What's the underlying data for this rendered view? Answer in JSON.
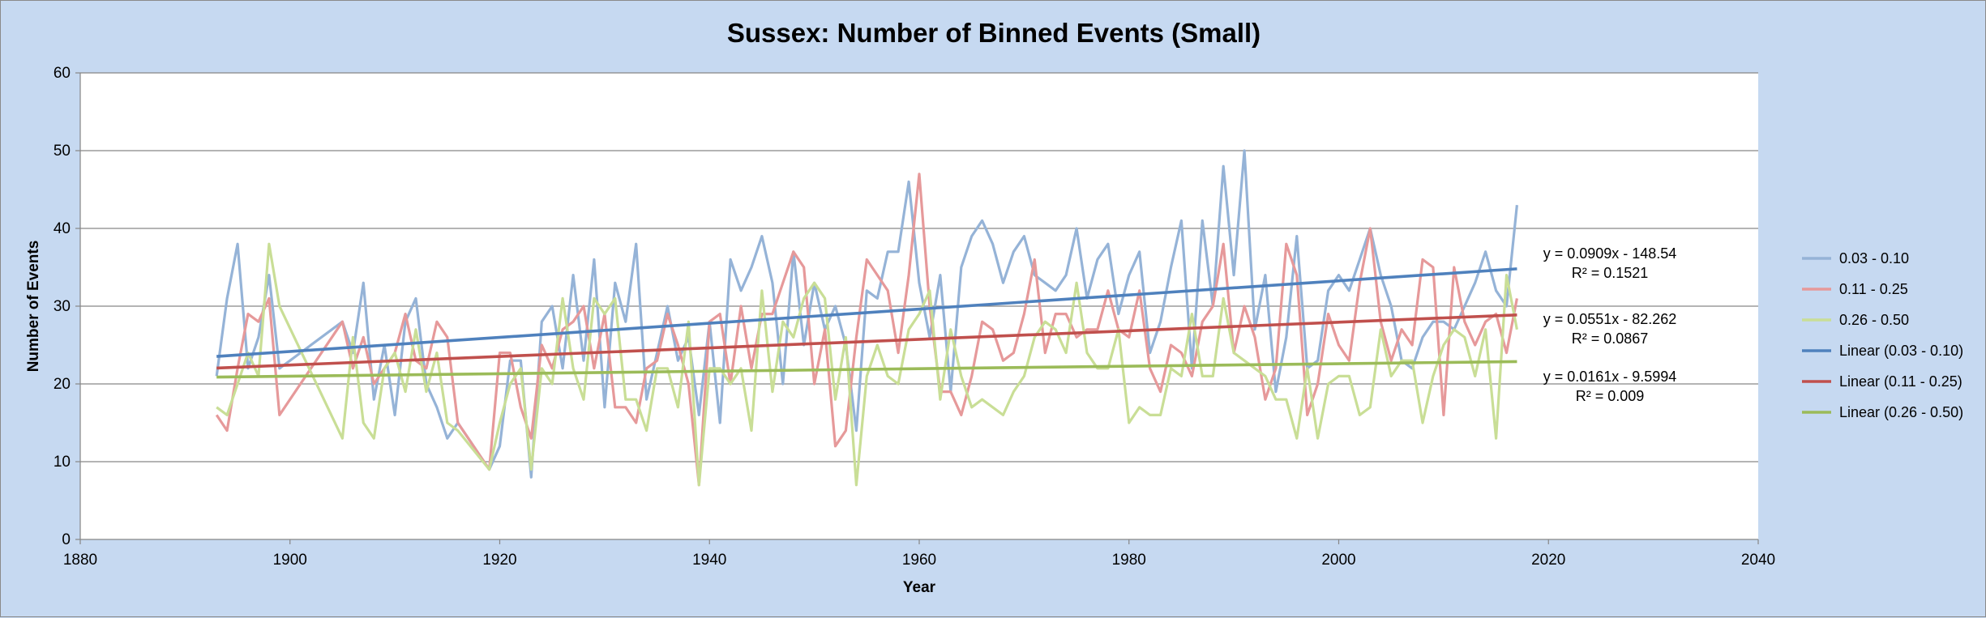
{
  "chart_data": {
    "type": "line",
    "title": "Sussex: Number of Binned Events (Small)",
    "xlabel": "Year",
    "ylabel": "Number of Events",
    "xlim": [
      1880,
      2040
    ],
    "ylim": [
      0,
      60
    ],
    "x_ticks": [
      "1880",
      "1900",
      "1920",
      "1940",
      "1960",
      "1980",
      "2000",
      "2020",
      "2040"
    ],
    "y_ticks": [
      "0",
      "10",
      "20",
      "30",
      "40",
      "50",
      "60"
    ],
    "grid": "horizontal",
    "legend_position": "right",
    "x": [
      1893,
      1894,
      1895,
      1896,
      1897,
      1898,
      1899,
      1905,
      1906,
      1907,
      1908,
      1909,
      1910,
      1911,
      1912,
      1913,
      1914,
      1915,
      1916,
      1919,
      1920,
      1921,
      1922,
      1923,
      1924,
      1925,
      1926,
      1927,
      1928,
      1929,
      1930,
      1931,
      1932,
      1933,
      1934,
      1935,
      1936,
      1937,
      1938,
      1939,
      1940,
      1941,
      1942,
      1943,
      1944,
      1945,
      1946,
      1947,
      1948,
      1949,
      1950,
      1951,
      1952,
      1953,
      1954,
      1955,
      1956,
      1957,
      1958,
      1959,
      1960,
      1961,
      1962,
      1963,
      1964,
      1965,
      1966,
      1967,
      1968,
      1969,
      1970,
      1971,
      1972,
      1973,
      1974,
      1975,
      1976,
      1977,
      1978,
      1979,
      1980,
      1981,
      1982,
      1983,
      1984,
      1985,
      1986,
      1987,
      1988,
      1989,
      1990,
      1991,
      1992,
      1993,
      1994,
      1995,
      1996,
      1997,
      1998,
      1999,
      2000,
      2001,
      2002,
      2003,
      2004,
      2005,
      2006,
      2007,
      2008,
      2009,
      2010,
      2011,
      2012,
      2013,
      2014,
      2015,
      2016,
      2017
    ],
    "series": [
      {
        "name": "0.03 - 0.10",
        "color": "#95b3d7",
        "values": [
          21,
          31,
          38,
          22,
          26,
          34,
          22,
          28,
          24,
          33,
          18,
          25,
          16,
          28,
          31,
          20,
          17,
          13,
          15,
          9,
          12,
          23,
          23,
          8,
          28,
          30,
          22,
          34,
          23,
          36,
          17,
          33,
          28,
          38,
          18,
          24,
          30,
          23,
          26,
          16,
          28,
          15,
          36,
          32,
          35,
          39,
          33,
          20,
          37,
          25,
          33,
          27,
          30,
          25,
          14,
          32,
          31,
          37,
          37,
          46,
          33,
          26,
          34,
          19,
          35,
          39,
          41,
          38,
          33,
          37,
          39,
          34,
          33,
          32,
          34,
          40,
          31,
          36,
          38,
          29,
          34,
          37,
          24,
          28,
          35,
          41,
          22,
          41,
          30,
          48,
          34,
          50,
          27,
          34,
          19,
          26,
          39,
          22,
          23,
          32,
          34,
          32,
          36,
          40,
          34,
          30,
          23,
          22,
          26,
          28,
          28,
          27,
          30,
          33,
          37,
          32,
          30,
          43
        ]
      },
      {
        "name": "0.11 - 0.25",
        "color": "#e6999a",
        "values": [
          16,
          14,
          22,
          29,
          28,
          31,
          16,
          28,
          22,
          26,
          20,
          22,
          24,
          29,
          23,
          22,
          28,
          26,
          15,
          9,
          24,
          24,
          17,
          13,
          25,
          22,
          27,
          28,
          30,
          22,
          29,
          17,
          17,
          15,
          22,
          23,
          29,
          25,
          20,
          7,
          28,
          29,
          20,
          30,
          22,
          29,
          29,
          33,
          37,
          35,
          20,
          27,
          12,
          14,
          26,
          36,
          34,
          32,
          24,
          34,
          47,
          30,
          19,
          19,
          16,
          21,
          28,
          27,
          23,
          24,
          29,
          36,
          24,
          29,
          29,
          26,
          27,
          27,
          32,
          27,
          26,
          32,
          22,
          19,
          25,
          24,
          21,
          28,
          30,
          38,
          24,
          30,
          26,
          18,
          22,
          38,
          34,
          16,
          20,
          29,
          25,
          23,
          33,
          40,
          28,
          23,
          27,
          25,
          36,
          35,
          16,
          35,
          28,
          25,
          28,
          29,
          24,
          31
        ]
      },
      {
        "name": "0.26 - 0.50",
        "color": "#c9de96",
        "values": [
          17,
          16,
          20,
          24,
          21,
          38,
          30,
          13,
          26,
          15,
          13,
          22,
          24,
          19,
          27,
          19,
          24,
          15,
          14,
          9,
          15,
          20,
          22,
          9,
          22,
          20,
          31,
          22,
          18,
          31,
          29,
          31,
          18,
          18,
          14,
          22,
          22,
          17,
          28,
          7,
          22,
          22,
          20,
          22,
          14,
          32,
          19,
          28,
          26,
          31,
          33,
          31,
          18,
          26,
          7,
          21,
          25,
          21,
          20,
          27,
          29,
          32,
          18,
          27,
          21,
          17,
          18,
          17,
          16,
          19,
          21,
          26,
          28,
          27,
          24,
          33,
          24,
          22,
          22,
          27,
          15,
          17,
          16,
          16,
          22,
          21,
          29,
          21,
          21,
          31,
          24,
          23,
          22,
          21,
          18,
          18,
          13,
          22,
          13,
          20,
          21,
          21,
          16,
          17,
          27,
          21,
          23,
          23,
          15,
          21,
          25,
          27,
          26,
          21,
          27,
          13,
          34,
          27
        ]
      }
    ],
    "trendlines": [
      {
        "name": "Linear (0.03 - 0.10)",
        "color": "#4f81bd",
        "slope": 0.0909,
        "intercept": -148.54,
        "x_range": [
          1893,
          2017
        ],
        "equation": "y = 0.0909x - 148.54",
        "r2": "R² = 0.1521"
      },
      {
        "name": "Linear (0.11 - 0.25)",
        "color": "#c0504d",
        "slope": 0.0551,
        "intercept": -82.262,
        "x_range": [
          1893,
          2017
        ],
        "equation": "y = 0.0551x - 82.262",
        "r2": "R² = 0.0867"
      },
      {
        "name": "Linear (0.26 - 0.50)",
        "color": "#9bbb59",
        "slope": 0.0161,
        "intercept": -9.5994,
        "x_range": [
          1893,
          2017
        ],
        "equation": "y = 0.0161x - 9.5994",
        "r2": "R² = 0.009"
      }
    ]
  }
}
